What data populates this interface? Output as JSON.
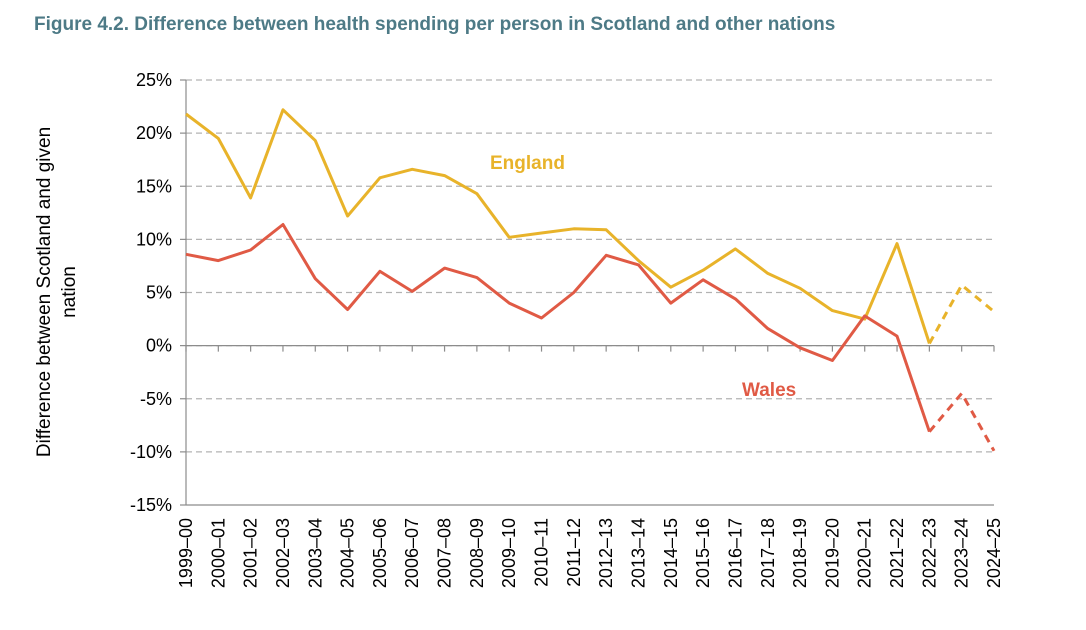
{
  "figure_title": "Figure 4.2. Difference between health spending per person in Scotland and other nations",
  "chart_data": {
    "type": "line",
    "title": "Figure 4.2. Difference between health spending per person in Scotland and other nations",
    "ylabel_line1": "Difference between Scotland and given",
    "ylabel_line2": "nation",
    "xlabel": "",
    "ylim": [
      -15,
      25
    ],
    "yticks": [
      25,
      20,
      15,
      10,
      5,
      0,
      -5,
      -10,
      -15
    ],
    "ytick_labels": [
      "25%",
      "20%",
      "15%",
      "10%",
      "5%",
      "0%",
      "-5%",
      "-10%",
      "-15%"
    ],
    "grid": true,
    "categories": [
      "1999–00",
      "2000–01",
      "2001–02",
      "2002–03",
      "2003–04",
      "2004–05",
      "2005–06",
      "2006–07",
      "2007–08",
      "2008–09",
      "2009–10",
      "2010–11",
      "2011–12",
      "2012–13",
      "2013–14",
      "2014–15",
      "2015–16",
      "2016–17",
      "2017–18",
      "2018–19",
      "2019–20",
      "2020–21",
      "2021–22",
      "2022–23",
      "2023–24",
      "2024–25"
    ],
    "solid_until_index": 23,
    "series": [
      {
        "name": "England",
        "color": "#e8b32a",
        "values": [
          21.8,
          19.5,
          13.9,
          22.2,
          19.3,
          12.2,
          15.8,
          16.6,
          16.0,
          14.3,
          10.2,
          10.6,
          11.0,
          10.9,
          8.0,
          5.5,
          7.1,
          9.1,
          6.8,
          5.4,
          3.3,
          2.5,
          9.6,
          0.2,
          5.7,
          3.2
        ]
      },
      {
        "name": "Wales",
        "color": "#e05a45",
        "values": [
          8.6,
          8.0,
          9.0,
          11.4,
          6.3,
          3.4,
          7.0,
          5.1,
          7.3,
          6.4,
          4.0,
          2.6,
          5.0,
          8.5,
          7.6,
          4.0,
          6.2,
          4.4,
          1.6,
          -0.2,
          -1.4,
          2.8,
          0.9,
          -8.1,
          -4.5,
          -9.9
        ]
      }
    ]
  }
}
